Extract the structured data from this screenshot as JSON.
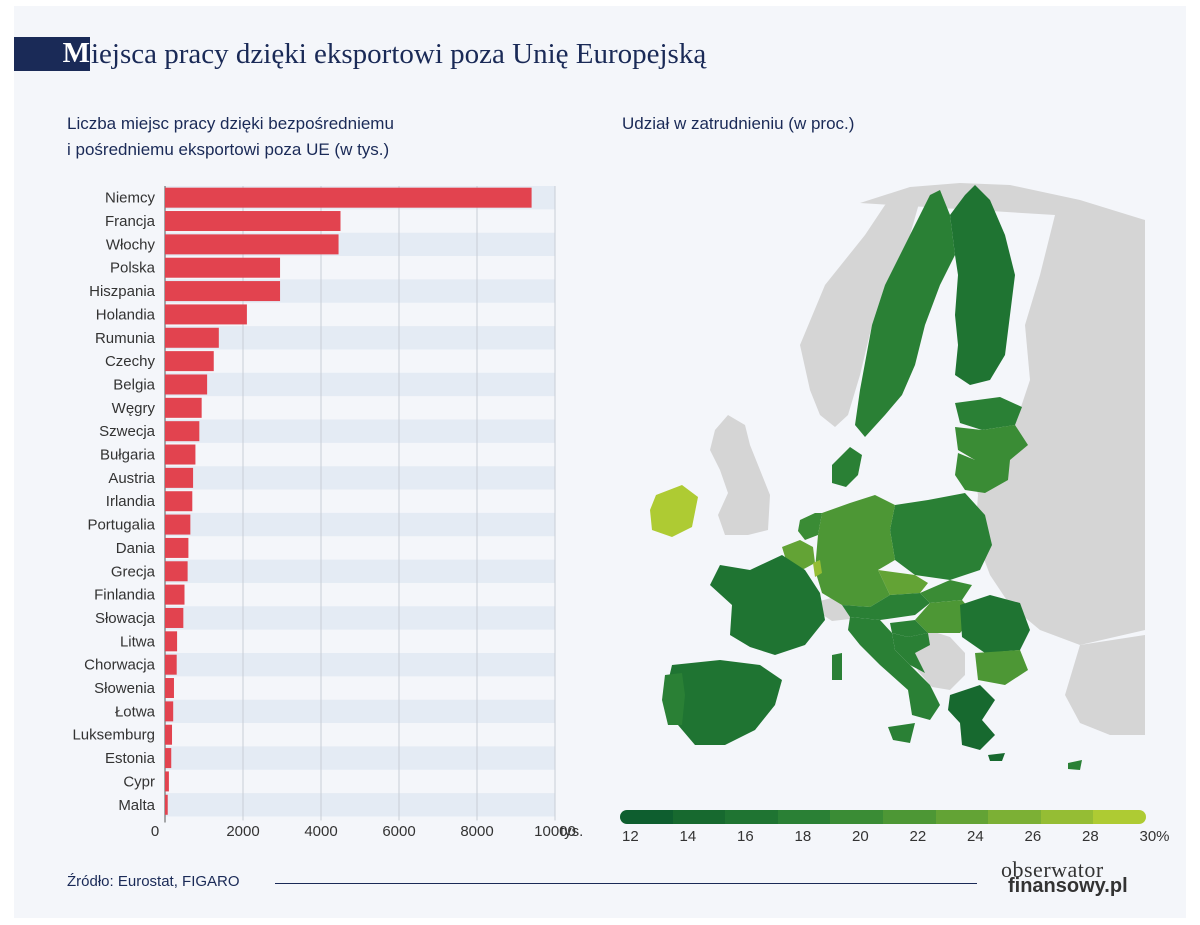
{
  "header": {
    "title_initial": "M",
    "title_rest": "iejsca pracy dzięki eksportowi poza Unię Europejską"
  },
  "left_panel": {
    "subtitle_line1": "Liczba miejsc pracy dzięki bezpośredniemu",
    "subtitle_line2": "i pośredniemu eksportowi poza UE (w tys.)"
  },
  "right_panel": {
    "subtitle": "Udział w zatrudnieniu (w proc.)",
    "scale_labels": [
      "12",
      "14",
      "16",
      "18",
      "20",
      "22",
      "24",
      "26",
      "28",
      "30%"
    ],
    "scale_colors": [
      "#0e5e2f",
      "#17692f",
      "#1f7432",
      "#2a8035",
      "#3a8c35",
      "#4d9735",
      "#63a335",
      "#7cb035",
      "#95bd34",
      "#aecb33"
    ]
  },
  "chart_data": {
    "type": "bar",
    "orientation": "horizontal",
    "categories": [
      "Niemcy",
      "Francja",
      "Włochy",
      "Polska",
      "Hiszpania",
      "Holandia",
      "Rumunia",
      "Czechy",
      "Belgia",
      "Węgry",
      "Szwecja",
      "Bułgaria",
      "Austria",
      "Irlandia",
      "Portugalia",
      "Dania",
      "Grecja",
      "Finlandia",
      "Słowacja",
      "Litwa",
      "Chorwacja",
      "Słowenia",
      "Łotwa",
      "Luksemburg",
      "Estonia",
      "Cypr",
      "Malta"
    ],
    "values": [
      9400,
      4500,
      4450,
      2950,
      2950,
      2100,
      1380,
      1250,
      1080,
      940,
      880,
      780,
      720,
      700,
      650,
      600,
      580,
      500,
      470,
      310,
      300,
      230,
      210,
      180,
      160,
      100,
      70
    ],
    "xticks": [
      "0",
      "2000",
      "4000",
      "6000",
      "8000",
      "10000"
    ],
    "xunit": "tys.",
    "xlim": [
      0,
      10000
    ],
    "bar_color": "#e2434f",
    "grid": true
  },
  "footer": {
    "source": "Źródło: Eurostat, FIGARO",
    "logo_line1": "obserwator",
    "logo_line2": "finansowy.pl"
  }
}
